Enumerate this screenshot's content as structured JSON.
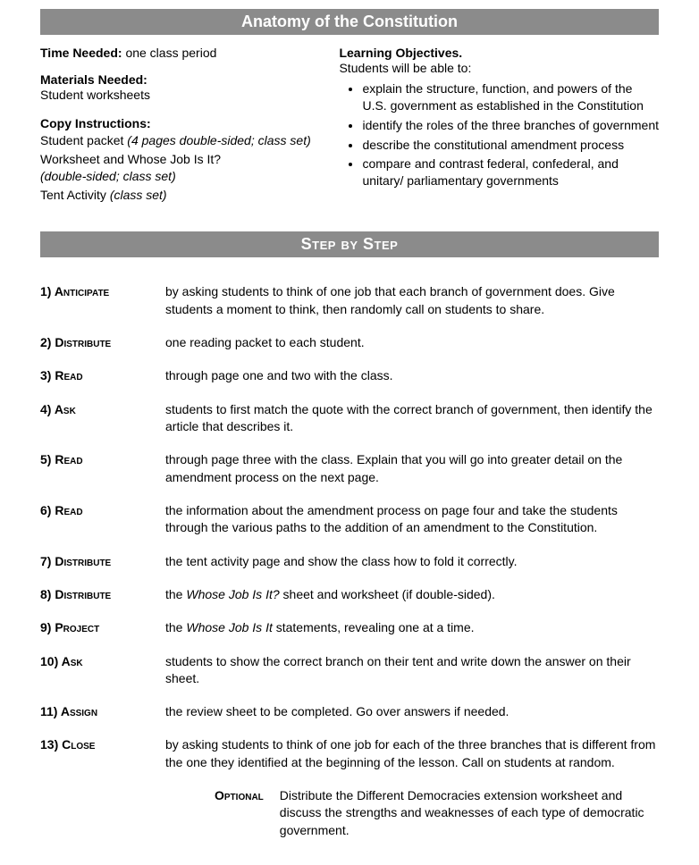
{
  "title": "Anatomy of the Constitution",
  "colors": {
    "bar_bg": "#8b8b8b",
    "bar_text": "#ffffff",
    "text": "#000000"
  },
  "left": {
    "time_label": "Time Needed:",
    "time_value": "one class period",
    "materials_label": "Materials Needed:",
    "materials_value": "Student worksheets",
    "copy_label": "Copy Instructions:",
    "copy1_prefix": "Student packet ",
    "copy1_italic": "(4 pages double-sided; class set)",
    "copy2_prefix": "Worksheet and Whose Job Is It? ",
    "copy2_italic": "(double-sided; class set)",
    "copy3_prefix": "Tent Activity ",
    "copy3_italic": "(class set)"
  },
  "right": {
    "obj_label": "Learning Objectives.",
    "obj_intro": "Students will be able to:",
    "objectives": [
      "explain the structure, function, and powers of the U.S. government as established in the Constitution",
      "identify the roles of the three branches of government",
      "describe the constitutional amendment process",
      "compare and contrast federal, confederal, and unitary/ parliamentary governments"
    ]
  },
  "section_title": "Step by Step",
  "steps": [
    {
      "n": "1) Anticipate",
      "body": "by asking students to think of one job that each branch of government does. Give students a moment to think, then randomly call on students to share."
    },
    {
      "n": "2) Distribute",
      "body": "one reading packet to each student."
    },
    {
      "n": "3) Read",
      "body": "through page one and two with the class."
    },
    {
      "n": "4) Ask",
      "body": "students to first match the quote with the correct branch of government, then identify the article that describes it."
    },
    {
      "n": "5) Read",
      "body": "through page three with the class. Explain that you will go into greater detail on the amendment process on the next page."
    },
    {
      "n": "6) Read",
      "body": "the information about the amendment process on page four and take the students through the various paths to the addition of an amendment to the Constitution."
    },
    {
      "n": "7) Distribute",
      "body": "the tent activity page and show the class how to fold it correctly."
    },
    {
      "n": "8) Distribute",
      "pre": "the ",
      "ital": "Whose Job Is It?",
      "post": " sheet and worksheet (if double-sided)."
    },
    {
      "n": "9) Project",
      "pre": "the ",
      "ital": "Whose Job Is It",
      "post": "  statements, revealing one at a time."
    },
    {
      "n": "10) Ask",
      "body": "students to show the correct branch on their tent and write down the answer on their sheet."
    },
    {
      "n": "11) Assign",
      "body": "the review sheet to be completed. Go over answers if needed."
    },
    {
      "n": "13) Close",
      "body": "by asking students to think of one job for each of the three branches that is different from the one they identified at the beginning of the lesson. Call on students at random."
    }
  ],
  "optional": {
    "label": "Optional",
    "text": "Distribute the Different Democracies extension worksheet and discuss the strengths and weaknesses of each type of democratic government."
  }
}
